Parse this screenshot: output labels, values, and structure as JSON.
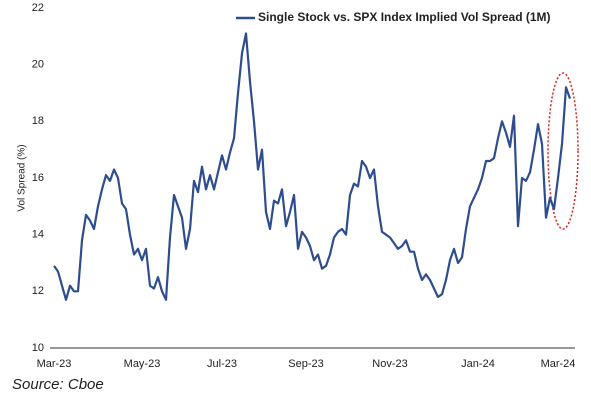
{
  "chart_data": {
    "type": "line",
    "legend_label": "Single Stock vs. SPX Index Implied Vol Spread (1M)",
    "y_label": "Vol Spread (%)",
    "source": "Source: Cboe",
    "grid": false,
    "ylim": [
      10,
      22
    ],
    "yticks": [
      10,
      12,
      14,
      16,
      18,
      20,
      22
    ],
    "categories": [
      "Mar-23",
      null,
      null,
      null,
      null,
      null,
      null,
      null,
      null,
      null,
      null,
      null,
      null,
      null,
      null,
      null,
      null,
      null,
      null,
      null,
      null,
      null,
      "May-23",
      null,
      null,
      null,
      null,
      null,
      null,
      null,
      null,
      null,
      null,
      null,
      null,
      null,
      null,
      null,
      null,
      null,
      null,
      null,
      "Jul-23",
      null,
      null,
      null,
      null,
      null,
      null,
      null,
      null,
      null,
      null,
      null,
      null,
      null,
      null,
      null,
      null,
      null,
      null,
      null,
      null,
      "Sep-23",
      null,
      null,
      null,
      null,
      null,
      null,
      null,
      null,
      null,
      null,
      null,
      null,
      null,
      null,
      null,
      null,
      null,
      null,
      null,
      null,
      "Nov-23",
      null,
      null,
      null,
      null,
      null,
      null,
      null,
      null,
      null,
      null,
      null,
      null,
      null,
      null,
      null,
      null,
      null,
      null,
      null,
      null,
      null,
      "Jan-24",
      null,
      null,
      null,
      null,
      null,
      null,
      null,
      null,
      null,
      null,
      null,
      null,
      null,
      null,
      null,
      null,
      null,
      null,
      null,
      "Mar-24",
      null,
      null,
      null
    ],
    "series": [
      {
        "name": "Single Stock vs. SPX Index Implied Vol Spread (1M)",
        "color": "#2e4d8f",
        "values": [
          12.9,
          12.7,
          12.2,
          11.7,
          12.2,
          12.0,
          12.0,
          13.8,
          14.7,
          14.5,
          14.2,
          15.0,
          15.6,
          16.1,
          15.9,
          16.3,
          16.0,
          15.1,
          14.9,
          14.0,
          13.3,
          13.5,
          13.1,
          13.5,
          12.2,
          12.1,
          12.5,
          12.0,
          11.7,
          13.9,
          15.4,
          15.0,
          14.6,
          13.5,
          14.2,
          15.9,
          15.5,
          16.4,
          15.6,
          16.1,
          15.6,
          16.2,
          16.8,
          16.3,
          16.9,
          17.4,
          19.0,
          20.4,
          21.1,
          19.4,
          18.0,
          16.3,
          17.0,
          14.8,
          14.2,
          15.2,
          15.1,
          15.6,
          14.3,
          14.8,
          15.4,
          13.5,
          14.1,
          13.9,
          13.6,
          13.1,
          13.3,
          12.8,
          12.9,
          13.3,
          13.9,
          14.1,
          14.2,
          14.0,
          15.4,
          15.8,
          15.7,
          16.6,
          16.4,
          16.0,
          16.3,
          15.0,
          14.1,
          14.0,
          13.9,
          13.7,
          13.5,
          13.6,
          13.8,
          13.4,
          13.4,
          12.8,
          12.4,
          12.6,
          12.4,
          12.1,
          11.8,
          11.9,
          12.4,
          13.1,
          13.5,
          13.0,
          13.2,
          14.2,
          15.0,
          15.3,
          15.6,
          16.0,
          16.6,
          16.6,
          16.7,
          17.4,
          18.0,
          17.6,
          17.1,
          18.2,
          14.3,
          16.0,
          15.9,
          16.2,
          17.0,
          17.9,
          17.2,
          14.6,
          15.3,
          14.9,
          16.0,
          17.2,
          19.2,
          18.8
        ]
      }
    ]
  }
}
